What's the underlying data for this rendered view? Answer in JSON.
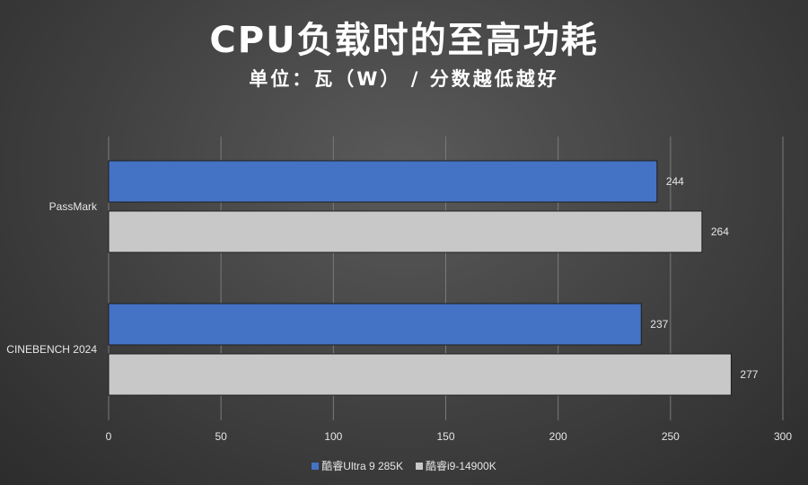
{
  "chart_data": {
    "type": "bar",
    "orientation": "horizontal",
    "title": "CPU负载时的至高功耗",
    "subtitle": "单位：瓦（W） / 分数越低越好",
    "categories": [
      "PassMark",
      "CINEBENCH 2024"
    ],
    "series": [
      {
        "name": "酷睿Ultra 9 285K",
        "values": [
          244,
          237
        ],
        "color": "#4472c4"
      },
      {
        "name": "酷睿i9-14900K",
        "values": [
          264,
          277
        ],
        "color": "#c8c8c8"
      }
    ],
    "xlim": [
      0,
      300
    ],
    "xticks": [
      0,
      50,
      100,
      150,
      200,
      250,
      300
    ],
    "grid": true,
    "legend_position": "bottom"
  }
}
